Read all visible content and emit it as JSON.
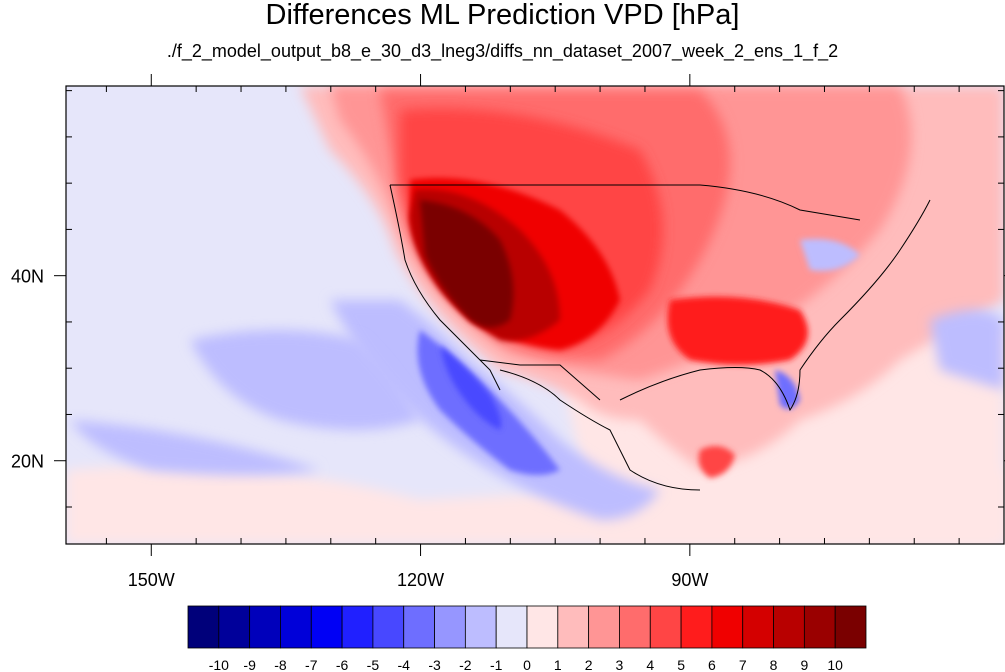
{
  "title": "Differences ML Prediction VPD [hPa]",
  "subtitle": "./f_2_model_output_b8_e_30_d3_lneg3/diffs_nn_dataset_2007_week_2_ens_1_f_2",
  "map": {
    "lon_range": [
      -159.5,
      -55
    ],
    "lat_range": [
      11,
      60.5
    ],
    "x_ticks": [
      {
        "lon": -150,
        "label": "150W"
      },
      {
        "lon": -120,
        "label": "120W"
      },
      {
        "lon": -90,
        "label": "90W"
      }
    ],
    "y_ticks": [
      {
        "lat": 40,
        "label": "40N"
      },
      {
        "lat": 20,
        "label": "20N"
      }
    ],
    "minor_lon_ticks": [
      -160,
      -155,
      -145,
      -140,
      -135,
      -130,
      -125,
      -115,
      -110,
      -105,
      -100,
      -95,
      -85,
      -80,
      -75,
      -70,
      -65,
      -60,
      -55
    ],
    "minor_lat_ticks": [
      15,
      25,
      30,
      35,
      45,
      50,
      55,
      60
    ]
  },
  "colorbar": {
    "labels": [
      "-10",
      "-9",
      "-8",
      "-7",
      "-6",
      "-5",
      "-4",
      "-3",
      "-2",
      "-1",
      "0",
      "1",
      "2",
      "3",
      "4",
      "5",
      "6",
      "7",
      "8",
      "9",
      "10"
    ],
    "colors": [
      "#00007a",
      "#00009a",
      "#0000bb",
      "#0000d9",
      "#0000f5",
      "#2020ff",
      "#4848ff",
      "#6e6eff",
      "#9696ff",
      "#bdbdff",
      "#e6e6fa",
      "#ffe6e6",
      "#ffbcbc",
      "#ff9595",
      "#ff6c6c",
      "#ff4545",
      "#ff1c1c",
      "#f00000",
      "#d40000",
      "#b80000",
      "#9a0000",
      "#7a0000"
    ]
  }
}
